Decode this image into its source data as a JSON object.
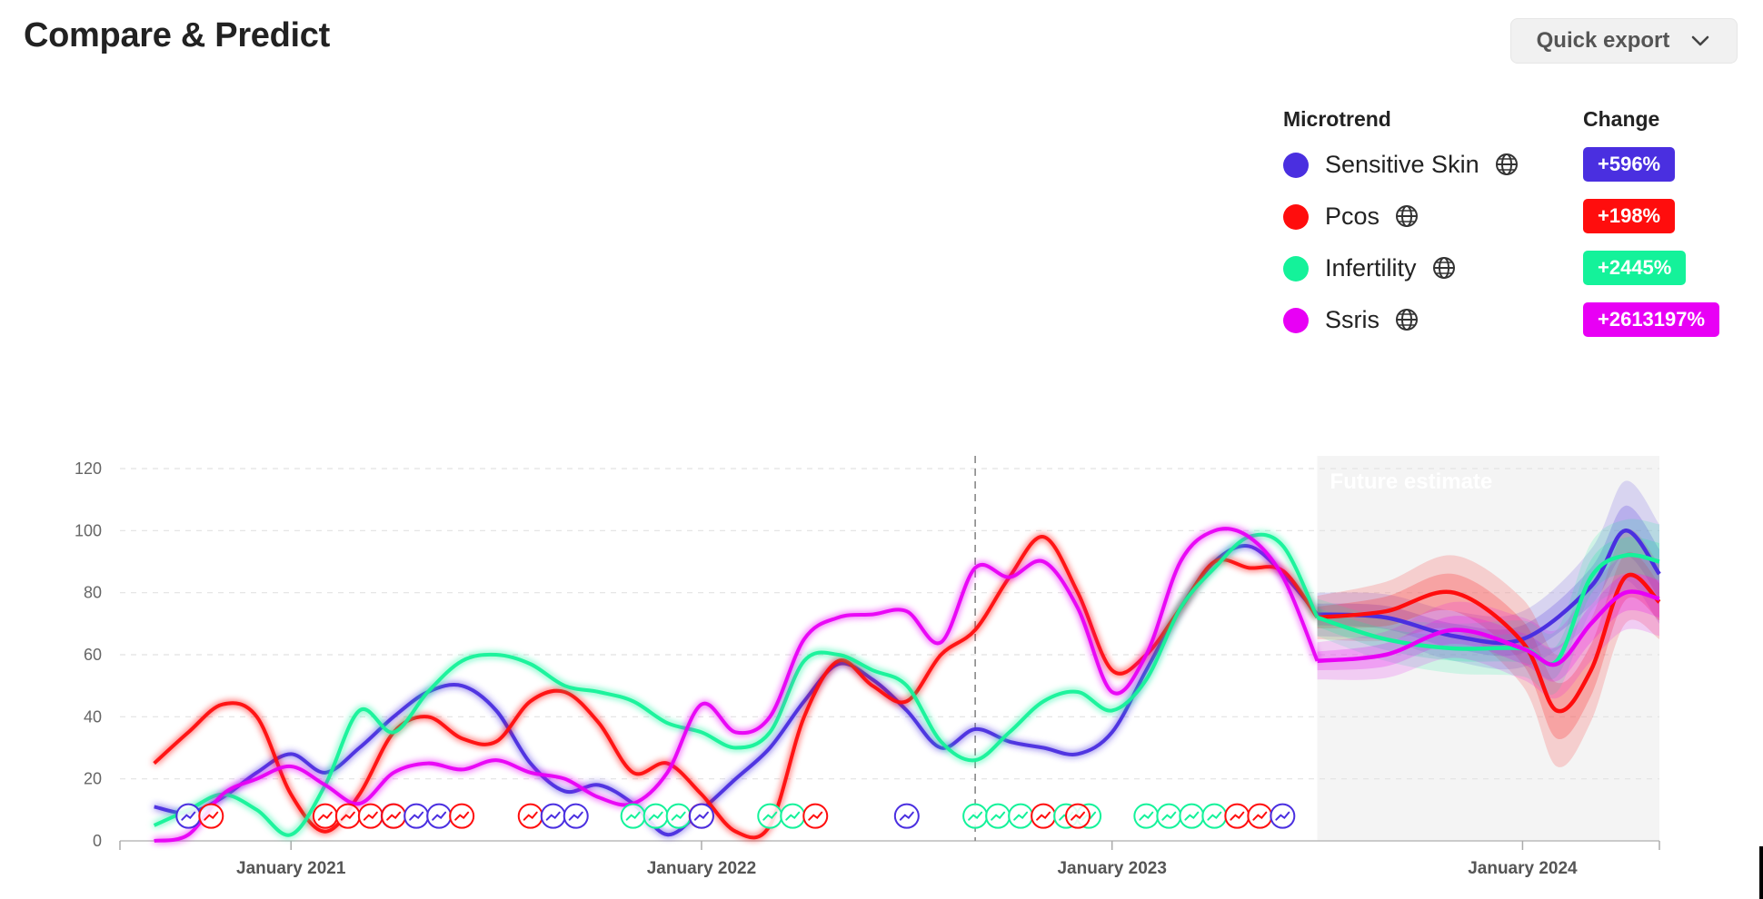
{
  "header": {
    "title": "Compare & Predict",
    "export_label": "Quick export",
    "export_icon": "chevron-down-icon"
  },
  "legend": {
    "microtrend_header": "Microtrend",
    "change_header": "Change",
    "items": [
      {
        "name": "Sensitive Skin",
        "change": "+596%",
        "color": "#4a2fe0",
        "icon": "globe-icon"
      },
      {
        "name": "Pcos",
        "change": "+198%",
        "color": "#ff0d0d",
        "icon": "globe-icon"
      },
      {
        "name": "Infertility",
        "change": "+2445%",
        "color": "#14f29a",
        "icon": "globe-icon"
      },
      {
        "name": "Ssris",
        "change": "+2613197%",
        "color": "#e800f5",
        "icon": "globe-icon"
      }
    ]
  },
  "chart_data": {
    "type": "line",
    "title": "",
    "xlabel": "",
    "ylabel": "",
    "ylim": [
      0,
      120
    ],
    "yticks": [
      0,
      20,
      40,
      60,
      80,
      100,
      120
    ],
    "xticks": [
      "January 2021",
      "January 2022",
      "January 2023",
      "January 2024"
    ],
    "x_range": [
      "2020-08",
      "2024-05"
    ],
    "grid": true,
    "annotation": "Future estimate",
    "forecast_start": "2023-07",
    "vertical_marker": "2022-09",
    "series": [
      {
        "name": "Sensitive Skin",
        "color": "#4a2fe0",
        "points": [
          [
            "2020-09",
            11
          ],
          [
            "2020-10",
            9
          ],
          [
            "2020-11",
            14
          ],
          [
            "2020-12",
            22
          ],
          [
            "2021-01",
            28
          ],
          [
            "2021-02",
            22
          ],
          [
            "2021-03",
            30
          ],
          [
            "2021-04",
            40
          ],
          [
            "2021-05",
            48
          ],
          [
            "2021-06",
            50
          ],
          [
            "2021-07",
            42
          ],
          [
            "2021-08",
            25
          ],
          [
            "2021-09",
            16
          ],
          [
            "2021-10",
            18
          ],
          [
            "2021-11",
            12
          ],
          [
            "2021-12",
            2
          ],
          [
            "2022-01",
            10
          ],
          [
            "2022-02",
            20
          ],
          [
            "2022-03",
            30
          ],
          [
            "2022-04",
            45
          ],
          [
            "2022-05",
            57
          ],
          [
            "2022-06",
            52
          ],
          [
            "2022-07",
            42
          ],
          [
            "2022-08",
            30
          ],
          [
            "2022-09",
            36
          ],
          [
            "2022-10",
            32
          ],
          [
            "2022-11",
            30
          ],
          [
            "2022-12",
            28
          ],
          [
            "2023-01",
            35
          ],
          [
            "2023-02",
            55
          ],
          [
            "2023-03",
            75
          ],
          [
            "2023-04",
            90
          ],
          [
            "2023-05",
            95
          ],
          [
            "2023-06",
            86
          ],
          [
            "2023-07",
            73
          ]
        ],
        "forecast": [
          [
            "2023-07",
            73
          ],
          [
            "2023-09",
            72
          ],
          [
            "2023-11",
            66
          ],
          [
            "2024-01",
            65
          ],
          [
            "2024-03",
            82
          ],
          [
            "2024-04",
            100
          ],
          [
            "2024-05",
            86
          ]
        ],
        "band": [
          [
            "2023-07",
            7
          ],
          [
            "2023-11",
            8
          ],
          [
            "2024-01",
            9
          ],
          [
            "2024-03",
            12
          ],
          [
            "2024-04",
            16
          ],
          [
            "2024-05",
            16
          ]
        ]
      },
      {
        "name": "Pcos",
        "color": "#ff0d0d",
        "points": [
          [
            "2020-09",
            25
          ],
          [
            "2020-10",
            35
          ],
          [
            "2020-11",
            44
          ],
          [
            "2020-12",
            40
          ],
          [
            "2021-01",
            15
          ],
          [
            "2021-02",
            3
          ],
          [
            "2021-03",
            15
          ],
          [
            "2021-04",
            35
          ],
          [
            "2021-05",
            40
          ],
          [
            "2021-06",
            33
          ],
          [
            "2021-07",
            32
          ],
          [
            "2021-08",
            45
          ],
          [
            "2021-09",
            48
          ],
          [
            "2021-10",
            38
          ],
          [
            "2021-11",
            22
          ],
          [
            "2021-12",
            25
          ],
          [
            "2022-01",
            15
          ],
          [
            "2022-02",
            3
          ],
          [
            "2022-03",
            5
          ],
          [
            "2022-04",
            40
          ],
          [
            "2022-05",
            58
          ],
          [
            "2022-06",
            50
          ],
          [
            "2022-07",
            45
          ],
          [
            "2022-08",
            60
          ],
          [
            "2022-09",
            68
          ],
          [
            "2022-10",
            85
          ],
          [
            "2022-11",
            98
          ],
          [
            "2022-12",
            80
          ],
          [
            "2023-01",
            55
          ],
          [
            "2023-02",
            60
          ],
          [
            "2023-03",
            75
          ],
          [
            "2023-04",
            90
          ],
          [
            "2023-05",
            88
          ],
          [
            "2023-06",
            87
          ],
          [
            "2023-07",
            72
          ]
        ],
        "forecast": [
          [
            "2023-07",
            72
          ],
          [
            "2023-09",
            74
          ],
          [
            "2023-11",
            80
          ],
          [
            "2024-01",
            64
          ],
          [
            "2024-02",
            42
          ],
          [
            "2024-03",
            55
          ],
          [
            "2024-04",
            85
          ],
          [
            "2024-05",
            77
          ]
        ],
        "band": [
          [
            "2023-07",
            7
          ],
          [
            "2023-11",
            12
          ],
          [
            "2024-01",
            14
          ],
          [
            "2024-02",
            18
          ],
          [
            "2024-04",
            15
          ],
          [
            "2024-05",
            12
          ]
        ]
      },
      {
        "name": "Infertility",
        "color": "#14f29a",
        "points": [
          [
            "2020-09",
            5
          ],
          [
            "2020-10",
            10
          ],
          [
            "2020-11",
            15
          ],
          [
            "2020-12",
            10
          ],
          [
            "2021-01",
            2
          ],
          [
            "2021-02",
            18
          ],
          [
            "2021-03",
            42
          ],
          [
            "2021-04",
            35
          ],
          [
            "2021-05",
            48
          ],
          [
            "2021-06",
            58
          ],
          [
            "2021-07",
            60
          ],
          [
            "2021-08",
            57
          ],
          [
            "2021-09",
            50
          ],
          [
            "2021-10",
            48
          ],
          [
            "2021-11",
            45
          ],
          [
            "2021-12",
            38
          ],
          [
            "2022-01",
            35
          ],
          [
            "2022-02",
            30
          ],
          [
            "2022-03",
            35
          ],
          [
            "2022-04",
            58
          ],
          [
            "2022-05",
            60
          ],
          [
            "2022-06",
            55
          ],
          [
            "2022-07",
            50
          ],
          [
            "2022-08",
            32
          ],
          [
            "2022-09",
            26
          ],
          [
            "2022-10",
            35
          ],
          [
            "2022-11",
            45
          ],
          [
            "2022-12",
            48
          ],
          [
            "2023-01",
            42
          ],
          [
            "2023-02",
            52
          ],
          [
            "2023-03",
            75
          ],
          [
            "2023-04",
            88
          ],
          [
            "2023-05",
            98
          ],
          [
            "2023-06",
            95
          ],
          [
            "2023-07",
            72
          ]
        ],
        "forecast": [
          [
            "2023-07",
            72
          ],
          [
            "2023-09",
            65
          ],
          [
            "2023-11",
            62
          ],
          [
            "2024-01",
            62
          ],
          [
            "2024-02",
            58
          ],
          [
            "2024-03",
            85
          ],
          [
            "2024-04",
            92
          ],
          [
            "2024-05",
            90
          ]
        ],
        "band": [
          [
            "2023-07",
            6
          ],
          [
            "2023-11",
            8
          ],
          [
            "2024-01",
            9
          ],
          [
            "2024-03",
            11
          ],
          [
            "2024-05",
            12
          ]
        ]
      },
      {
        "name": "Ssris",
        "color": "#e800f5",
        "points": [
          [
            "2020-09",
            0
          ],
          [
            "2020-10",
            2
          ],
          [
            "2020-11",
            15
          ],
          [
            "2020-12",
            20
          ],
          [
            "2021-01",
            24
          ],
          [
            "2021-02",
            18
          ],
          [
            "2021-03",
            12
          ],
          [
            "2021-04",
            22
          ],
          [
            "2021-05",
            25
          ],
          [
            "2021-06",
            23
          ],
          [
            "2021-07",
            26
          ],
          [
            "2021-08",
            22
          ],
          [
            "2021-09",
            20
          ],
          [
            "2021-10",
            14
          ],
          [
            "2021-11",
            12
          ],
          [
            "2021-12",
            22
          ],
          [
            "2022-01",
            44
          ],
          [
            "2022-02",
            35
          ],
          [
            "2022-03",
            40
          ],
          [
            "2022-04",
            65
          ],
          [
            "2022-05",
            72
          ],
          [
            "2022-06",
            73
          ],
          [
            "2022-07",
            74
          ],
          [
            "2022-08",
            64
          ],
          [
            "2022-09",
            88
          ],
          [
            "2022-10",
            85
          ],
          [
            "2022-11",
            90
          ],
          [
            "2022-12",
            75
          ],
          [
            "2023-01",
            48
          ],
          [
            "2023-02",
            60
          ],
          [
            "2023-03",
            90
          ],
          [
            "2023-04",
            100
          ],
          [
            "2023-05",
            98
          ],
          [
            "2023-06",
            85
          ],
          [
            "2023-07",
            58
          ]
        ],
        "forecast": [
          [
            "2023-07",
            58
          ],
          [
            "2023-09",
            60
          ],
          [
            "2023-11",
            68
          ],
          [
            "2024-01",
            62
          ],
          [
            "2024-02",
            57
          ],
          [
            "2024-03",
            70
          ],
          [
            "2024-04",
            80
          ],
          [
            "2024-05",
            78
          ]
        ],
        "band": [
          [
            "2023-07",
            6
          ],
          [
            "2023-11",
            9
          ],
          [
            "2024-01",
            10
          ],
          [
            "2024-03",
            12
          ],
          [
            "2024-05",
            12
          ]
        ]
      }
    ],
    "event_markers": [
      {
        "x": "2020-10",
        "series": [
          "Sensitive Skin",
          "Pcos"
        ]
      },
      {
        "x": "2021-02",
        "series": [
          "Pcos",
          "Pcos",
          "Pcos",
          "Sensitive Skin"
        ]
      },
      {
        "x": "2021-04",
        "series": [
          "Pcos",
          "Sensitive Skin",
          "Sensitive Skin",
          "Pcos"
        ]
      },
      {
        "x": "2021-08",
        "series": [
          "Pcos",
          "Sensitive Skin",
          "Sensitive Skin"
        ]
      },
      {
        "x": "2021-11",
        "series": [
          "Infertility",
          "Infertility",
          "Infertility",
          "Pcos"
        ]
      },
      {
        "x": "2022-01",
        "series": [
          "Sensitive Skin"
        ]
      },
      {
        "x": "2022-03",
        "series": [
          "Infertility",
          "Infertility",
          "Pcos"
        ]
      },
      {
        "x": "2022-07",
        "series": [
          "Sensitive Skin"
        ]
      },
      {
        "x": "2022-09",
        "series": [
          "Infertility",
          "Infertility",
          "Infertility",
          "Pcos",
          "Infertility",
          "Infertility"
        ]
      },
      {
        "x": "2022-12",
        "series": [
          "Pcos"
        ]
      },
      {
        "x": "2023-02",
        "series": [
          "Infertility",
          "Infertility",
          "Infertility",
          "Infertility",
          "Pcos",
          "Pcos",
          "Sensitive Skin"
        ]
      }
    ]
  }
}
